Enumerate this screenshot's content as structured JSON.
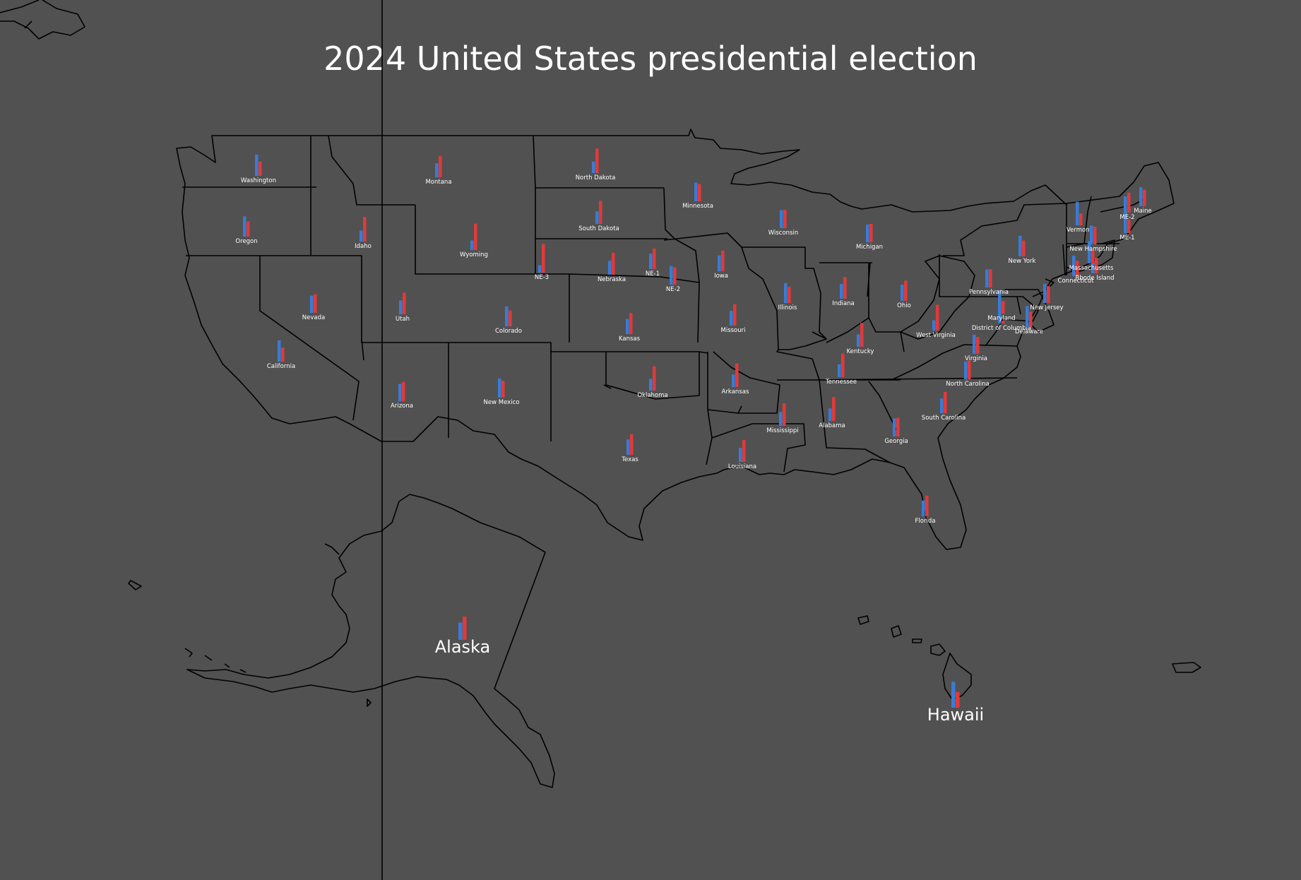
{
  "title": "2024 United States presidential election",
  "colors": {
    "background": "#515151",
    "democrat_bar": "#3a7bd5",
    "republican_bar": "#e2393a",
    "border": "#000000",
    "label": "#ffffff"
  },
  "chart_data": {
    "type": "bar",
    "series": [
      {
        "name": "",
        "color": "#3a7bd5"
      },
      {
        "name": "",
        "color": "#e2393a"
      }
    ],
    "states": [
      {
        "label": "Washington",
        "values": [
          0.58,
          0.39
        ]
      },
      {
        "label": "Oregon",
        "values": [
          0.55,
          0.41
        ]
      },
      {
        "label": "California",
        "values": [
          0.58,
          0.38
        ]
      },
      {
        "label": "Nevada",
        "values": [
          0.47,
          0.51
        ]
      },
      {
        "label": "Idaho",
        "values": [
          0.3,
          0.67
        ]
      },
      {
        "label": "Montana",
        "values": [
          0.38,
          0.58
        ]
      },
      {
        "label": "Wyoming",
        "values": [
          0.26,
          0.72
        ]
      },
      {
        "label": "Utah",
        "values": [
          0.38,
          0.59
        ]
      },
      {
        "label": "Colorado",
        "values": [
          0.54,
          0.43
        ]
      },
      {
        "label": "Arizona",
        "values": [
          0.47,
          0.52
        ]
      },
      {
        "label": "New Mexico",
        "values": [
          0.52,
          0.46
        ]
      },
      {
        "label": "North Dakota",
        "values": [
          0.31,
          0.67
        ]
      },
      {
        "label": "South Dakota",
        "values": [
          0.34,
          0.63
        ]
      },
      {
        "label": "NE-3",
        "values": [
          0.2,
          0.78
        ]
      },
      {
        "label": "Nebraska",
        "values": [
          0.38,
          0.6
        ]
      },
      {
        "label": "NE-1",
        "values": [
          0.42,
          0.56
        ]
      },
      {
        "label": "NE-2",
        "values": [
          0.51,
          0.47
        ]
      },
      {
        "label": "Kansas",
        "values": [
          0.41,
          0.57
        ]
      },
      {
        "label": "Oklahoma",
        "values": [
          0.32,
          0.66
        ]
      },
      {
        "label": "Texas",
        "values": [
          0.42,
          0.56
        ]
      },
      {
        "label": "Minnesota",
        "values": [
          0.51,
          0.47
        ]
      },
      {
        "label": "Iowa",
        "values": [
          0.43,
          0.56
        ]
      },
      {
        "label": "Missouri",
        "values": [
          0.4,
          0.58
        ]
      },
      {
        "label": "Arkansas",
        "values": [
          0.34,
          0.64
        ]
      },
      {
        "label": "Louisiana",
        "values": [
          0.38,
          0.6
        ]
      },
      {
        "label": "Wisconsin",
        "values": [
          0.49,
          0.5
        ]
      },
      {
        "label": "Illinois",
        "values": [
          0.54,
          0.44
        ]
      },
      {
        "label": "Michigan",
        "values": [
          0.48,
          0.5
        ]
      },
      {
        "label": "Indiana",
        "values": [
          0.4,
          0.59
        ]
      },
      {
        "label": "Ohio",
        "values": [
          0.44,
          0.55
        ]
      },
      {
        "label": "Kentucky",
        "values": [
          0.34,
          0.65
        ]
      },
      {
        "label": "Tennessee",
        "values": [
          0.35,
          0.64
        ]
      },
      {
        "label": "Mississippi",
        "values": [
          0.38,
          0.61
        ]
      },
      {
        "label": "Alabama",
        "values": [
          0.34,
          0.65
        ]
      },
      {
        "label": "Georgia",
        "values": [
          0.49,
          0.51
        ]
      },
      {
        "label": "Florida",
        "values": [
          0.43,
          0.56
        ]
      },
      {
        "label": "South Carolina",
        "values": [
          0.4,
          0.58
        ]
      },
      {
        "label": "North Carolina",
        "values": [
          0.48,
          0.51
        ]
      },
      {
        "label": "Virginia",
        "values": [
          0.52,
          0.46
        ]
      },
      {
        "label": "West Virginia",
        "values": [
          0.28,
          0.7
        ]
      },
      {
        "label": "District of Columbia",
        "values": [
          0.9,
          0.07
        ]
      },
      {
        "label": "Maryland",
        "values": [
          0.62,
          0.34
        ]
      },
      {
        "label": "Delaware",
        "values": [
          0.57,
          0.42
        ]
      },
      {
        "label": "Pennsylvania",
        "values": [
          0.49,
          0.5
        ]
      },
      {
        "label": "New Jersey",
        "values": [
          0.52,
          0.46
        ]
      },
      {
        "label": "New York",
        "values": [
          0.56,
          0.43
        ]
      },
      {
        "label": "Connecticut",
        "values": [
          0.56,
          0.42
        ]
      },
      {
        "label": "Rhode Island",
        "values": [
          0.55,
          0.42
        ]
      },
      {
        "label": "Massachusetts",
        "values": [
          0.61,
          0.36
        ]
      },
      {
        "label": "Vermont",
        "values": [
          0.64,
          0.32
        ]
      },
      {
        "label": "New Hampshire",
        "values": [
          0.51,
          0.48
        ]
      },
      {
        "label": "Maine",
        "values": [
          0.52,
          0.45
        ]
      },
      {
        "label": "ME-1",
        "values": [
          0.6,
          0.37
        ]
      },
      {
        "label": "ME-2",
        "values": [
          0.44,
          0.54
        ]
      },
      {
        "label": "Alaska",
        "values": [
          0.41,
          0.55
        ]
      },
      {
        "label": "Hawaii",
        "values": [
          0.61,
          0.37
        ]
      }
    ]
  }
}
